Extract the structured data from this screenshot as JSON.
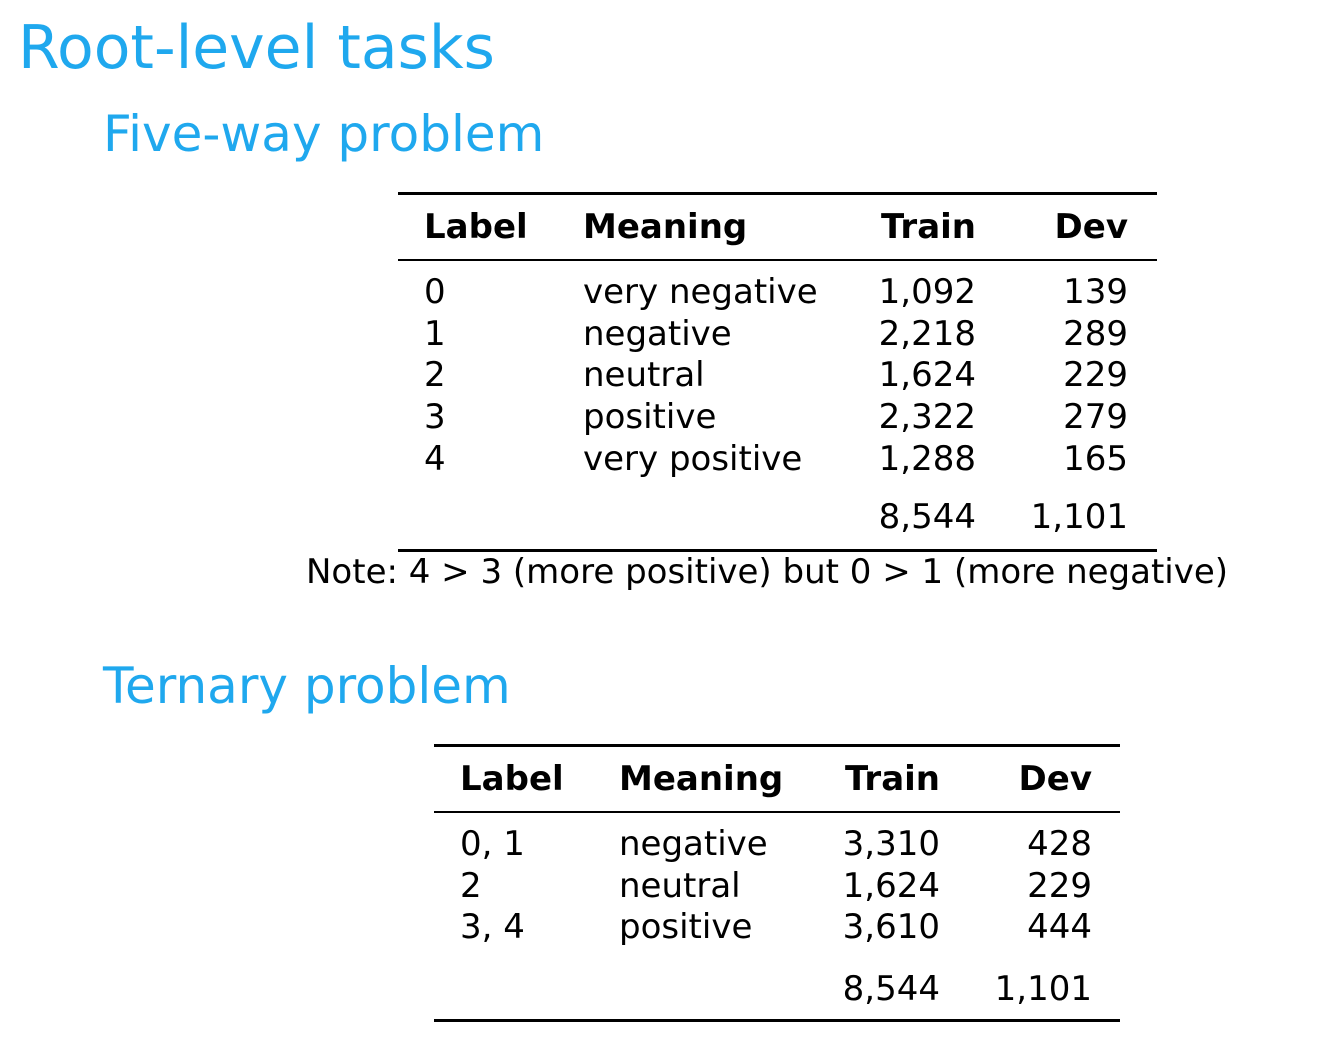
{
  "title": "Root-level tasks",
  "five_way": {
    "heading": "Five-way problem",
    "columns": [
      "Label",
      "Meaning",
      "Train",
      "Dev"
    ],
    "rows": [
      [
        "0",
        "very negative",
        "1,092",
        "139"
      ],
      [
        "1",
        "negative",
        "2,218",
        "289"
      ],
      [
        "2",
        "neutral",
        "1,624",
        "229"
      ],
      [
        "3",
        "positive",
        "2,322",
        "279"
      ],
      [
        "4",
        "very positive",
        "1,288",
        "165"
      ]
    ],
    "totals": [
      "8,544",
      "1,101"
    ],
    "note": "Note: 4 > 3 (more positive) but 0 > 1 (more negative)"
  },
  "ternary": {
    "heading": "Ternary problem",
    "columns": [
      "Label",
      "Meaning",
      "Train",
      "Dev"
    ],
    "rows": [
      [
        "0, 1",
        "negative",
        "3,310",
        "428"
      ],
      [
        "2",
        "neutral",
        "1,624",
        "229"
      ],
      [
        "3, 4",
        "positive",
        "3,610",
        "444"
      ]
    ],
    "totals": [
      "8,544",
      "1,101"
    ]
  },
  "colors": {
    "heading": "#1fa8ee",
    "text": "#000000"
  }
}
